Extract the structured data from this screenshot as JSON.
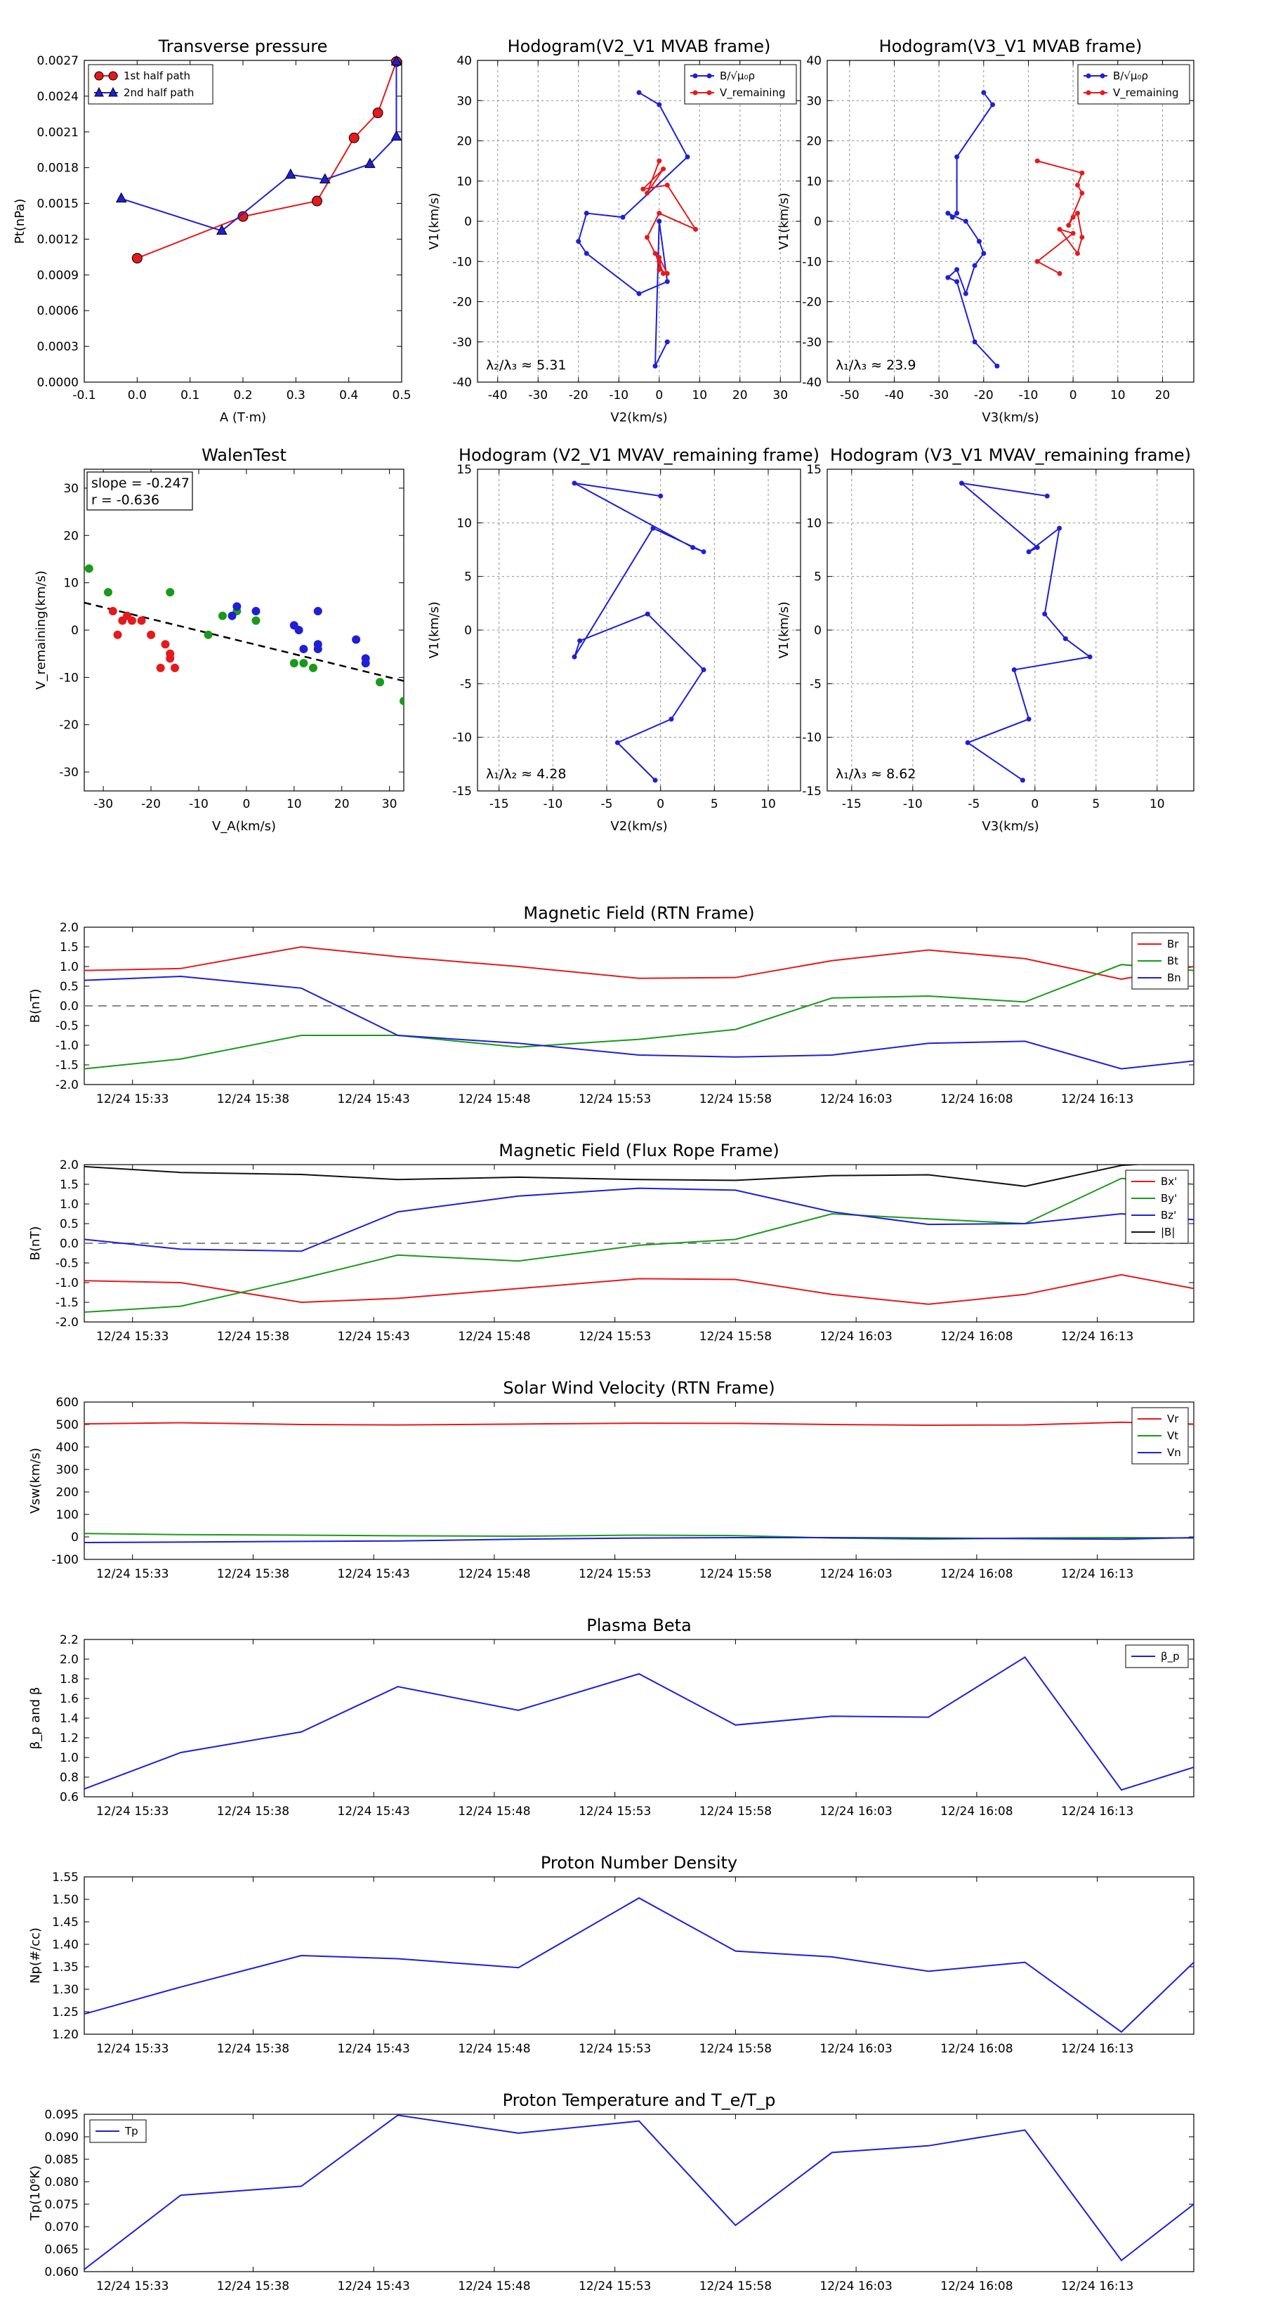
{
  "chart_data": [
    {
      "type": "line",
      "title": "Transverse pressure",
      "xlabel": "A (T·m)",
      "ylabel": "Pt(nPa)",
      "xlim": [
        -0.1,
        0.5
      ],
      "ylim": [
        0,
        0.0027
      ],
      "xticks": [
        -0.1,
        0.0,
        0.1,
        0.2,
        0.3,
        0.4,
        0.5
      ],
      "xtick_labels": [
        "-0.1",
        "0.0",
        "0.1",
        "0.2",
        "0.3",
        "0.4",
        "0.5"
      ],
      "yticks": [
        0,
        0.0003,
        0.0006,
        0.0009,
        0.0012,
        0.0015,
        0.0018,
        0.0021,
        0.0024,
        0.0027
      ],
      "ytick_labels": [
        "0.0000",
        "0.0003",
        "0.0006",
        "0.0009",
        "0.0012",
        "0.0015",
        "0.0018",
        "0.0021",
        "0.0024",
        "0.0027"
      ],
      "grid": false,
      "legend": "top-left",
      "series": [
        {
          "name": "1st half path",
          "color": "#e41a1c",
          "marker": "circle",
          "x": [
            0.0,
            0.2,
            0.34,
            0.41,
            0.455,
            0.49
          ],
          "y": [
            0.00104,
            0.00139,
            0.00152,
            0.00205,
            0.00226,
            0.00269
          ]
        },
        {
          "name": "2nd half path",
          "color": "#1f1fd6",
          "marker": "triangle",
          "x": [
            -0.03,
            0.16,
            0.29,
            0.355,
            0.44,
            0.49,
            0.49
          ],
          "y": [
            0.00154,
            0.00127,
            0.00174,
            0.0017,
            0.00183,
            0.00206,
            0.00269
          ]
        }
      ]
    },
    {
      "type": "line",
      "title": "Hodogram(V2_V1 MVAB frame)",
      "xlabel": "V2(km/s)",
      "ylabel": "V1(km/s)",
      "xlim": [
        -45,
        35
      ],
      "ylim": [
        -40,
        40
      ],
      "xticks": [
        -40,
        -30,
        -20,
        -10,
        0,
        10,
        20,
        30
      ],
      "yticks": [
        -40,
        -30,
        -20,
        -10,
        0,
        10,
        20,
        30,
        40
      ],
      "grid": true,
      "legend": "top-right",
      "annotation": "λ₂/λ₃ ≈ 5.31",
      "series": [
        {
          "name": "B/√μ₀ρ",
          "color": "#1f1fd6",
          "x": [
            -5,
            0,
            7,
            -9,
            -18,
            -20,
            -18,
            -5,
            2,
            0,
            -1,
            2
          ],
          "y": [
            32,
            29,
            16,
            1,
            2,
            -5,
            -8,
            -18,
            -15,
            0,
            -36,
            -30
          ]
        },
        {
          "name": "V_remaining",
          "color": "#e41a1c",
          "x": [
            0,
            -3,
            1,
            -4,
            2,
            9,
            0,
            -3,
            0,
            1,
            -1,
            0,
            2,
            0,
            0
          ],
          "y": [
            15,
            7,
            13,
            8,
            9,
            -2,
            2,
            -4,
            -10,
            -13,
            -8,
            -9,
            -13,
            -12,
            -10
          ]
        }
      ]
    },
    {
      "type": "line",
      "title": "Hodogram(V3_V1 MVAB frame)",
      "xlabel": "V3(km/s)",
      "ylabel": "V1(km/s)",
      "xlim": [
        -55,
        27
      ],
      "ylim": [
        -40,
        40
      ],
      "xticks": [
        -50,
        -40,
        -30,
        -20,
        -10,
        0,
        10,
        20
      ],
      "yticks": [
        -40,
        -30,
        -20,
        -10,
        0,
        10,
        20,
        30,
        40
      ],
      "grid": true,
      "legend": "top-right",
      "annotation": "λ₁/λ₃ ≈ 23.9",
      "series": [
        {
          "name": "B/√μ₀ρ",
          "color": "#1f1fd6",
          "x": [
            -20,
            -18,
            -26,
            -26,
            -27,
            -28,
            -24,
            -21,
            -20,
            -22,
            -24,
            -26,
            -28,
            -26,
            -22,
            -17
          ],
          "y": [
            32,
            29,
            16,
            2,
            1,
            2,
            0,
            -5,
            -8,
            -11,
            -18,
            -12,
            -14,
            -15,
            -30,
            -36
          ]
        },
        {
          "name": "V_remaining",
          "color": "#e41a1c",
          "x": [
            -8,
            2,
            1,
            2,
            -1,
            0,
            1,
            2,
            1,
            -3,
            0,
            -8,
            -3
          ],
          "y": [
            15,
            12,
            9,
            7,
            -1,
            1,
            2,
            -4,
            -8,
            -2,
            -3,
            -10,
            -13
          ]
        }
      ]
    },
    {
      "type": "scatter",
      "title": "WalenTest",
      "xlabel": "V_A(km/s)",
      "ylabel": "V_remaining(km/s)",
      "xlim": [
        -34,
        33
      ],
      "ylim": [
        -34,
        34
      ],
      "xticks": [
        -30,
        -20,
        -10,
        0,
        10,
        20,
        30
      ],
      "yticks": [
        -30,
        -20,
        -10,
        0,
        10,
        20,
        30
      ],
      "grid": false,
      "annotation_lines": [
        "slope = -0.247",
        "r = -0.636"
      ],
      "fit_line": {
        "slope": -0.247,
        "intercept": -2.6
      },
      "series": [
        {
          "name": "red",
          "color": "#e41a1c",
          "x": [
            -28,
            -25,
            -24,
            -22,
            -26,
            -27,
            -20,
            -17,
            -16,
            -16,
            -15,
            -18
          ],
          "y": [
            4,
            3,
            2,
            2,
            2,
            -1,
            -1,
            -3,
            -5,
            -6,
            -8,
            -8
          ]
        },
        {
          "name": "green",
          "color": "#1a9a1a",
          "x": [
            -33,
            -29,
            -16,
            -8,
            -5,
            -2,
            2,
            10,
            12,
            14,
            28,
            33
          ],
          "y": [
            13,
            8,
            8,
            -1,
            3,
            4,
            2,
            -7,
            -7,
            -8,
            -11,
            -15
          ]
        },
        {
          "name": "blue",
          "color": "#1f1fd6",
          "x": [
            -3,
            -2,
            2,
            10,
            11,
            12,
            15,
            15,
            15,
            23,
            25,
            25
          ],
          "y": [
            3,
            5,
            4,
            1,
            0,
            -4,
            4,
            -3,
            -4,
            -2,
            -6,
            -7
          ]
        }
      ]
    },
    {
      "type": "line",
      "title": "Hodogram (V2_V1 MVAV_remaining frame)",
      "xlabel": "V2(km/s)",
      "ylabel": "V1(km/s)",
      "xlim": [
        -17,
        13
      ],
      "ylim": [
        -15,
        15
      ],
      "xticks": [
        -15,
        -10,
        -5,
        0,
        5,
        10
      ],
      "yticks": [
        -15,
        -10,
        -5,
        0,
        5,
        10,
        15
      ],
      "grid": true,
      "annotation": "λ₁/λ₂ ≈ 4.28",
      "series": [
        {
          "name": "",
          "color": "#1f1fd6",
          "x": [
            0,
            -8,
            3,
            4,
            -0.7,
            -8,
            -7.5,
            -1.2,
            4,
            1,
            -4,
            -0.5
          ],
          "y": [
            12.5,
            13.7,
            7.7,
            7.3,
            9.5,
            -2.5,
            -1,
            1.5,
            -3.7,
            -8.3,
            -10.5,
            -14
          ]
        }
      ]
    },
    {
      "type": "line",
      "title": "Hodogram (V3_V1 MVAV_remaining frame)",
      "xlabel": "V3(km/s)",
      "ylabel": "V1(km/s)",
      "xlim": [
        -17,
        13
      ],
      "ylim": [
        -15,
        15
      ],
      "xticks": [
        -15,
        -10,
        -5,
        0,
        5,
        10
      ],
      "yticks": [
        -15,
        -10,
        -5,
        0,
        5,
        10,
        15
      ],
      "grid": true,
      "annotation": "λ₁/λ₃ ≈ 8.62",
      "series": [
        {
          "name": "",
          "color": "#1f1fd6",
          "x": [
            1,
            -6,
            0.2,
            -0.5,
            2,
            0.8,
            2.5,
            4.5,
            -1.7,
            -0.5,
            -5.5,
            -1
          ],
          "y": [
            12.5,
            13.7,
            7.7,
            7.3,
            9.5,
            1.5,
            -0.8,
            -2.5,
            -3.7,
            -8.3,
            -10.5,
            -14
          ]
        }
      ]
    },
    {
      "type": "line",
      "title": "Magnetic Field (RTN Frame)",
      "xlabel": "",
      "ylabel": "B(nT)",
      "ylim": [
        -2.0,
        2.0
      ],
      "yticks": [
        -2.0,
        -1.5,
        -1.0,
        -0.5,
        0.0,
        0.5,
        1.0,
        1.5,
        2.0
      ],
      "ytick_labels": [
        "-2.0",
        "-1.5",
        "-1.0",
        "-0.5",
        "0.0",
        "0.5",
        "1.0",
        "1.5",
        "2.0"
      ],
      "x": [
        "15:31",
        "15:35",
        "15:40",
        "15:44",
        "15:49",
        "15:54",
        "15:58",
        "16:02",
        "16:06",
        "16:10",
        "16:14",
        "16:17"
      ],
      "xtick_labels": [
        "12/24 15:33",
        "12/24 15:38",
        "12/24 15:43",
        "12/24 15:48",
        "12/24 15:53",
        "12/24 15:58",
        "12/24 16:03",
        "12/24 16:08",
        "12/24 16:13"
      ],
      "zero_line": true,
      "legend": "top-right",
      "series": [
        {
          "name": "Br",
          "color": "#e41a1c",
          "values": [
            0.9,
            0.95,
            1.5,
            1.25,
            1.0,
            0.7,
            0.72,
            1.15,
            1.42,
            1.2,
            0.68,
            1.0
          ]
        },
        {
          "name": "Bt",
          "color": "#1a9a1a",
          "values": [
            -1.6,
            -1.35,
            -0.75,
            -0.75,
            -1.05,
            -0.85,
            -0.6,
            0.2,
            0.25,
            0.1,
            1.05,
            0.9
          ]
        },
        {
          "name": "Bn",
          "color": "#1f1fd6",
          "values": [
            0.65,
            0.75,
            0.45,
            -0.75,
            -0.95,
            -1.25,
            -1.3,
            -1.25,
            -0.95,
            -0.9,
            -1.6,
            -1.4
          ]
        }
      ]
    },
    {
      "type": "line",
      "title": "Magnetic Field (Flux Rope Frame)",
      "xlabel": "",
      "ylabel": "B(nT)",
      "ylim": [
        -2.0,
        2.0
      ],
      "yticks": [
        -2.0,
        -1.5,
        -1.0,
        -0.5,
        0.0,
        0.5,
        1.0,
        1.5,
        2.0
      ],
      "ytick_labels": [
        "-2.0",
        "-1.5",
        "-1.0",
        "-0.5",
        "0.0",
        "0.5",
        "1.0",
        "1.5",
        "2.0"
      ],
      "x": [
        "15:31",
        "15:35",
        "15:40",
        "15:44",
        "15:49",
        "15:54",
        "15:58",
        "16:02",
        "16:06",
        "16:10",
        "16:14",
        "16:17"
      ],
      "xtick_labels": [
        "12/24 15:33",
        "12/24 15:38",
        "12/24 15:43",
        "12/24 15:48",
        "12/24 15:53",
        "12/24 15:58",
        "12/24 16:03",
        "12/24 16:08",
        "12/24 16:13"
      ],
      "zero_line": true,
      "legend": "top-right",
      "series": [
        {
          "name": "Bx'",
          "color": "#e41a1c",
          "values": [
            -0.95,
            -1.0,
            -1.5,
            -1.4,
            -1.15,
            -0.9,
            -0.92,
            -1.3,
            -1.55,
            -1.3,
            -0.8,
            -1.15
          ]
        },
        {
          "name": "By'",
          "color": "#1a9a1a",
          "values": [
            -1.75,
            -1.6,
            -0.9,
            -0.3,
            -0.45,
            -0.05,
            0.1,
            0.75,
            0.62,
            0.5,
            1.65,
            1.5
          ]
        },
        {
          "name": "Bz'",
          "color": "#1f1fd6",
          "values": [
            0.1,
            -0.15,
            -0.2,
            0.8,
            1.2,
            1.4,
            1.35,
            0.8,
            0.48,
            0.5,
            0.75,
            0.6
          ]
        },
        {
          "name": "|B|",
          "color": "#111111",
          "values": [
            1.95,
            1.8,
            1.75,
            1.62,
            1.68,
            1.62,
            1.6,
            1.72,
            1.74,
            1.45,
            1.98,
            2.1
          ]
        }
      ]
    },
    {
      "type": "line",
      "title": "Solar Wind Velocity (RTN Frame)",
      "xlabel": "",
      "ylabel": "Vsw(km/s)",
      "ylim": [
        -100,
        600
      ],
      "yticks": [
        -100,
        0,
        100,
        200,
        300,
        400,
        500,
        600
      ],
      "ytick_labels": [
        "-100",
        "0",
        "100",
        "200",
        "300",
        "400",
        "500",
        "600"
      ],
      "x": [
        "15:31",
        "15:35",
        "15:40",
        "15:44",
        "15:49",
        "15:54",
        "15:58",
        "16:02",
        "16:06",
        "16:10",
        "16:14",
        "16:17"
      ],
      "xtick_labels": [
        "12/24 15:33",
        "12/24 15:38",
        "12/24 15:43",
        "12/24 15:48",
        "12/24 15:53",
        "12/24 15:58",
        "12/24 16:03",
        "12/24 16:08",
        "12/24 16:13"
      ],
      "legend": "top-right",
      "series": [
        {
          "name": "Vr",
          "color": "#e41a1c",
          "values": [
            503,
            508,
            500,
            498,
            502,
            506,
            505,
            500,
            497,
            498,
            510,
            502
          ]
        },
        {
          "name": "Vt",
          "color": "#1a9a1a",
          "values": [
            15,
            10,
            8,
            5,
            3,
            8,
            6,
            -5,
            -10,
            -5,
            -3,
            -5
          ]
        },
        {
          "name": "Vn",
          "color": "#1f1fd6",
          "values": [
            -25,
            -23,
            -20,
            -18,
            -10,
            -5,
            -3,
            -3,
            -5,
            -8,
            -10,
            -3
          ]
        }
      ]
    },
    {
      "type": "line",
      "title": "Plasma Beta",
      "xlabel": "",
      "ylabel": "β_p and β",
      "ylim": [
        0.6,
        2.2
      ],
      "yticks": [
        0.6,
        0.8,
        1.0,
        1.2,
        1.4,
        1.6,
        1.8,
        2.0,
        2.2
      ],
      "ytick_labels": [
        "0.6",
        "0.8",
        "1.0",
        "1.2",
        "1.4",
        "1.6",
        "1.8",
        "2.0",
        "2.2"
      ],
      "x": [
        "15:31",
        "15:35",
        "15:40",
        "15:44",
        "15:49",
        "15:54",
        "15:58",
        "16:02",
        "16:06",
        "16:10",
        "16:14",
        "16:17"
      ],
      "xtick_labels": [
        "12/24 15:33",
        "12/24 15:38",
        "12/24 15:43",
        "12/24 15:48",
        "12/24 15:53",
        "12/24 15:58",
        "12/24 16:03",
        "12/24 16:08",
        "12/24 16:13"
      ],
      "legend": "top-right",
      "series": [
        {
          "name": "β_p",
          "color": "#1f1fd6",
          "values": [
            0.68,
            1.05,
            1.26,
            1.72,
            1.48,
            1.85,
            1.33,
            1.42,
            1.41,
            2.02,
            0.67,
            0.9
          ]
        }
      ]
    },
    {
      "type": "line",
      "title": "Proton Number Density",
      "xlabel": "",
      "ylabel": "Np(#/cc)",
      "ylim": [
        1.2,
        1.55
      ],
      "yticks": [
        1.2,
        1.25,
        1.3,
        1.35,
        1.4,
        1.45,
        1.5,
        1.55
      ],
      "ytick_labels": [
        "1.20",
        "1.25",
        "1.30",
        "1.35",
        "1.40",
        "1.45",
        "1.50",
        "1.55"
      ],
      "x": [
        "15:31",
        "15:35",
        "15:40",
        "15:44",
        "15:49",
        "15:54",
        "15:58",
        "16:02",
        "16:06",
        "16:10",
        "16:14",
        "16:17"
      ],
      "xtick_labels": [
        "12/24 15:33",
        "12/24 15:38",
        "12/24 15:43",
        "12/24 15:48",
        "12/24 15:53",
        "12/24 15:58",
        "12/24 16:03",
        "12/24 16:08",
        "12/24 16:13"
      ],
      "series": [
        {
          "name": "",
          "color": "#1f1fd6",
          "values": [
            1.245,
            1.305,
            1.375,
            1.368,
            1.348,
            1.503,
            1.385,
            1.372,
            1.34,
            1.36,
            1.205,
            1.36
          ]
        }
      ]
    },
    {
      "type": "line",
      "title": "Proton Temperature and T_e/T_p",
      "xlabel": "",
      "ylabel": "Tp(10⁶K)",
      "ylim": [
        0.06,
        0.095
      ],
      "yticks": [
        0.06,
        0.065,
        0.07,
        0.075,
        0.08,
        0.085,
        0.09,
        0.095
      ],
      "ytick_labels": [
        "0.060",
        "0.065",
        "0.070",
        "0.075",
        "0.080",
        "0.085",
        "0.090",
        "0.095"
      ],
      "x": [
        "15:31",
        "15:35",
        "15:40",
        "15:44",
        "15:49",
        "15:54",
        "15:58",
        "16:02",
        "16:06",
        "16:10",
        "16:14",
        "16:17"
      ],
      "xtick_labels": [
        "12/24 15:33",
        "12/24 15:38",
        "12/24 15:43",
        "12/24 15:48",
        "12/24 15:53",
        "12/24 15:58",
        "12/24 16:03",
        "12/24 16:08",
        "12/24 16:13"
      ],
      "legend": "top-left",
      "series": [
        {
          "name": "Tp",
          "color": "#1f1fd6",
          "values": [
            0.0605,
            0.077,
            0.079,
            0.0948,
            0.0908,
            0.0935,
            0.0703,
            0.0865,
            0.088,
            0.0915,
            0.0625,
            0.075
          ]
        }
      ]
    }
  ]
}
